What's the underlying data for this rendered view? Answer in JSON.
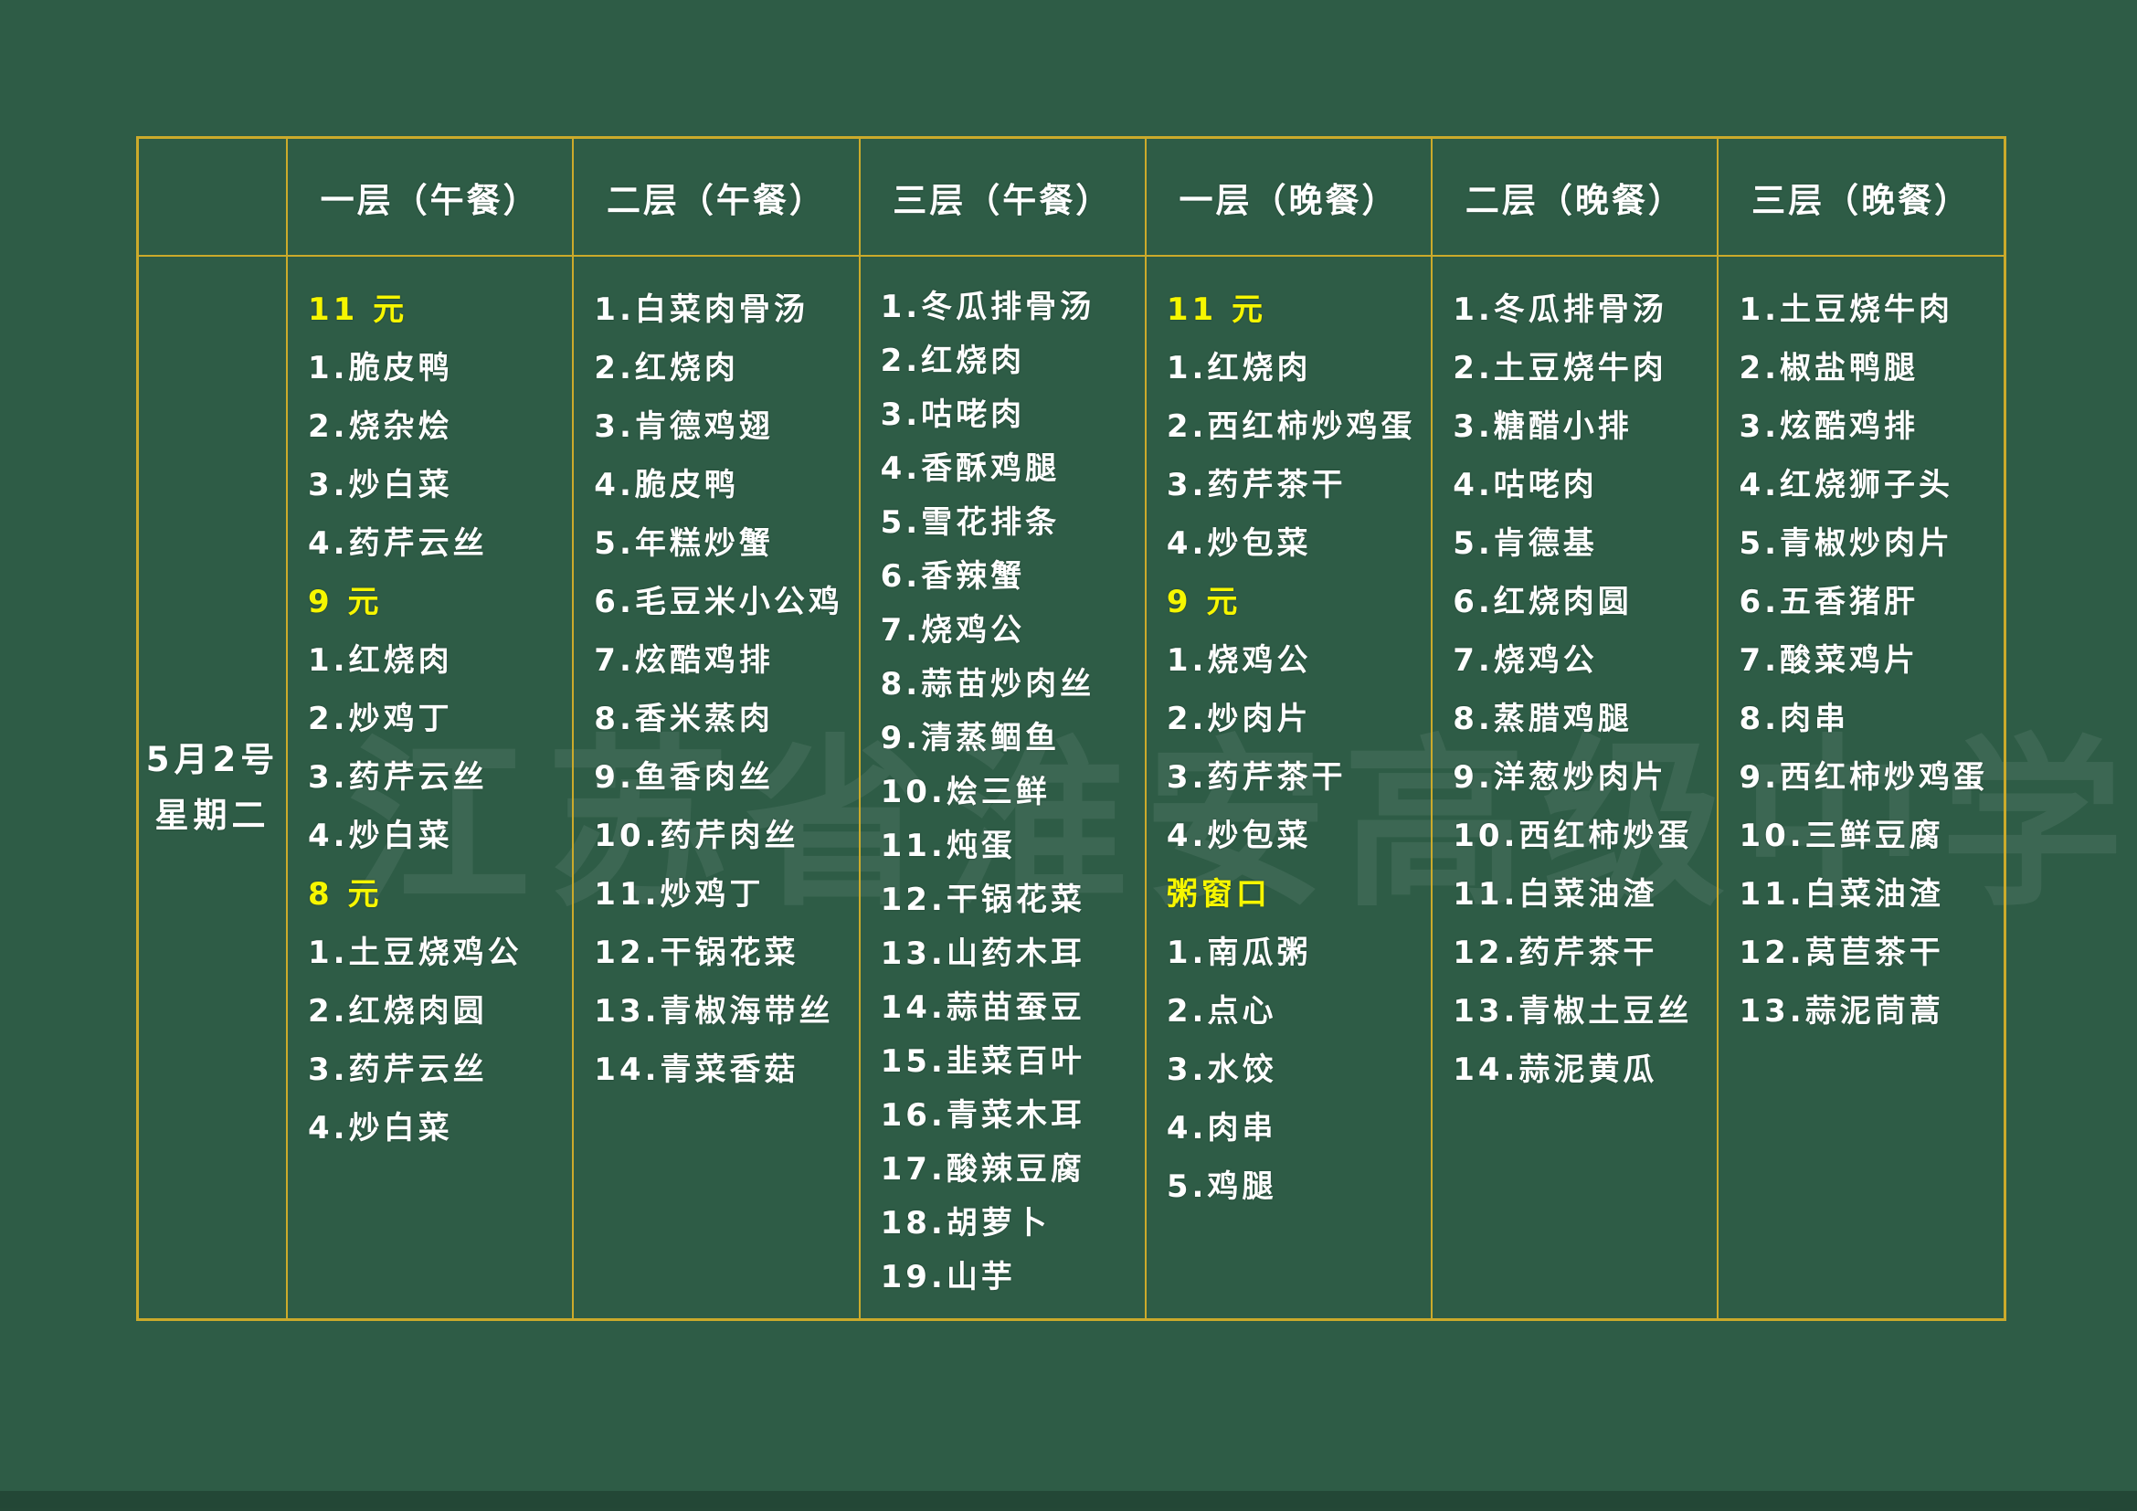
{
  "watermark": "江苏省淮安高级中学",
  "date": {
    "line1": "5月2号",
    "line2": "星期二"
  },
  "colors": {
    "background": "#2e5c46",
    "grid_border": "#cbaa2b",
    "item_text": "#ffffff",
    "price_text": "#f6f600"
  },
  "columns": [
    {
      "header": "一层（午餐）",
      "items": [
        {
          "text": "11 元",
          "highlight": true
        },
        {
          "text": "1.脆皮鸭"
        },
        {
          "text": "2.烧杂烩"
        },
        {
          "text": "3.炒白菜"
        },
        {
          "text": "4.药芹云丝"
        },
        {
          "text": "9 元",
          "highlight": true
        },
        {
          "text": "1.红烧肉"
        },
        {
          "text": "2.炒鸡丁"
        },
        {
          "text": "3.药芹云丝"
        },
        {
          "text": "4.炒白菜"
        },
        {
          "text": "8 元",
          "highlight": true
        },
        {
          "text": "1.土豆烧鸡公"
        },
        {
          "text": "2.红烧肉圆"
        },
        {
          "text": "3.药芹云丝"
        },
        {
          "text": "4.炒白菜"
        }
      ]
    },
    {
      "header": "二层（午餐）",
      "items": [
        {
          "text": "1.白菜肉骨汤"
        },
        {
          "text": "2.红烧肉"
        },
        {
          "text": "3.肯德鸡翅"
        },
        {
          "text": "4.脆皮鸭"
        },
        {
          "text": "5.年糕炒蟹"
        },
        {
          "text": "6.毛豆米小公鸡"
        },
        {
          "text": "7.炫酷鸡排"
        },
        {
          "text": "8.香米蒸肉"
        },
        {
          "text": "9.鱼香肉丝"
        },
        {
          "text": "10.药芹肉丝"
        },
        {
          "text": "11.炒鸡丁"
        },
        {
          "text": "12.干锅花菜"
        },
        {
          "text": "13.青椒海带丝"
        },
        {
          "text": "14.青菜香菇"
        }
      ]
    },
    {
      "header": "三层（午餐）",
      "items": [
        {
          "text": "1.冬瓜排骨汤"
        },
        {
          "text": "2.红烧肉"
        },
        {
          "text": "3.咕咾肉"
        },
        {
          "text": "4.香酥鸡腿"
        },
        {
          "text": "5.雪花排条"
        },
        {
          "text": "6.香辣蟹"
        },
        {
          "text": "7.烧鸡公"
        },
        {
          "text": "8.蒜苗炒肉丝"
        },
        {
          "text": "9.清蒸鲴鱼"
        },
        {
          "text": "10.烩三鲜"
        },
        {
          "text": "11.炖蛋"
        },
        {
          "text": "12.干锅花菜"
        },
        {
          "text": "13.山药木耳"
        },
        {
          "text": "14.蒜苗蚕豆"
        },
        {
          "text": "15.韭菜百叶"
        },
        {
          "text": "16.青菜木耳"
        },
        {
          "text": "17.酸辣豆腐"
        },
        {
          "text": "18.胡萝卜"
        },
        {
          "text": "19.山芋"
        }
      ]
    },
    {
      "header": "一层（晚餐）",
      "items": [
        {
          "text": "11 元",
          "highlight": true
        },
        {
          "text": "1.红烧肉"
        },
        {
          "text": "2.西红柿炒鸡蛋"
        },
        {
          "text": "3.药芹茶干"
        },
        {
          "text": "4.炒包菜"
        },
        {
          "text": "9 元",
          "highlight": true
        },
        {
          "text": "1.烧鸡公"
        },
        {
          "text": "2.炒肉片"
        },
        {
          "text": "3.药芹茶干"
        },
        {
          "text": "4.炒包菜"
        },
        {
          "text": "粥窗口",
          "highlight": true
        },
        {
          "text": "1.南瓜粥"
        },
        {
          "text": "2.点心"
        },
        {
          "text": "3.水饺"
        },
        {
          "text": "4.肉串"
        },
        {
          "text": "5.鸡腿"
        }
      ]
    },
    {
      "header": "二层（晚餐）",
      "items": [
        {
          "text": "1.冬瓜排骨汤"
        },
        {
          "text": "2.土豆烧牛肉"
        },
        {
          "text": "3.糖醋小排"
        },
        {
          "text": "4.咕咾肉"
        },
        {
          "text": "5.肯德基"
        },
        {
          "text": "6.红烧肉圆"
        },
        {
          "text": "7.烧鸡公"
        },
        {
          "text": "8.蒸腊鸡腿"
        },
        {
          "text": "9.洋葱炒肉片"
        },
        {
          "text": "10.西红柿炒蛋"
        },
        {
          "text": "11.白菜油渣"
        },
        {
          "text": "12.药芹茶干"
        },
        {
          "text": "13.青椒土豆丝"
        },
        {
          "text": "14.蒜泥黄瓜"
        }
      ]
    },
    {
      "header": "三层（晚餐）",
      "items": [
        {
          "text": "1.土豆烧牛肉"
        },
        {
          "text": "2.椒盐鸭腿"
        },
        {
          "text": "3.炫酷鸡排"
        },
        {
          "text": "4.红烧狮子头"
        },
        {
          "text": "5.青椒炒肉片"
        },
        {
          "text": "6.五香猪肝"
        },
        {
          "text": "7.酸菜鸡片"
        },
        {
          "text": "8.肉串"
        },
        {
          "text": "9.西红柿炒鸡蛋"
        },
        {
          "text": "10.三鲜豆腐"
        },
        {
          "text": "11.白菜油渣"
        },
        {
          "text": "12.莴苣茶干"
        },
        {
          "text": "13.蒜泥茼蒿"
        }
      ]
    }
  ]
}
